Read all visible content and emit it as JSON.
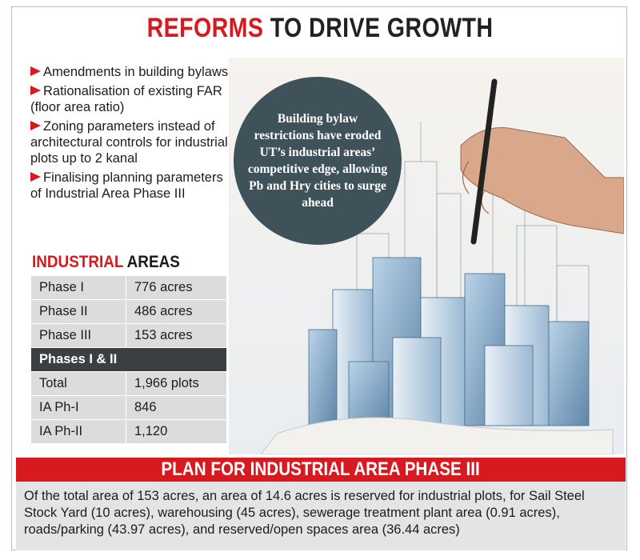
{
  "header": {
    "title_highlight": "REFORMS",
    "title_rest": "TO DRIVE GROWTH"
  },
  "bullets": [
    "Amendments in building bylaws",
    "Rationalisation of existing FAR (floor area ratio)",
    "Zoning parameters instead of architectural controls for industrial plots up to 2 kanal",
    "Finalising planning parameters of Industrial Area Phase III"
  ],
  "table": {
    "title_highlight": "INDUSTRIAL",
    "title_rest": "AREAS",
    "rows": [
      [
        "Phase I",
        "776 acres"
      ],
      [
        "Phase II",
        "486 acres"
      ],
      [
        "Phase III",
        "153 acres"
      ]
    ],
    "subheader": "Phases I & II",
    "rows2": [
      [
        "Total",
        "1,966 plots"
      ],
      [
        "IA Ph-I",
        "846"
      ],
      [
        "IA Ph-II",
        "1,120"
      ]
    ]
  },
  "callout": "Building bylaw restrictions have eroded UT’s industrial areas’ competitive edge, allowing Pb and Hry cities to surge ahead",
  "plan": {
    "title": "PLAN FOR INDUSTRIAL AREA PHASE III",
    "text": "Of the total area of 153 acres, an area of 14.6 acres is reserved for industrial plots, for Sail Steel Stock Yard (10 acres), warehousing (45 acres), sewerage treatment plant area (0.91 acres), roads/parking (43.97 acres), and reserved/open spaces area (36.44 acres)"
  }
}
